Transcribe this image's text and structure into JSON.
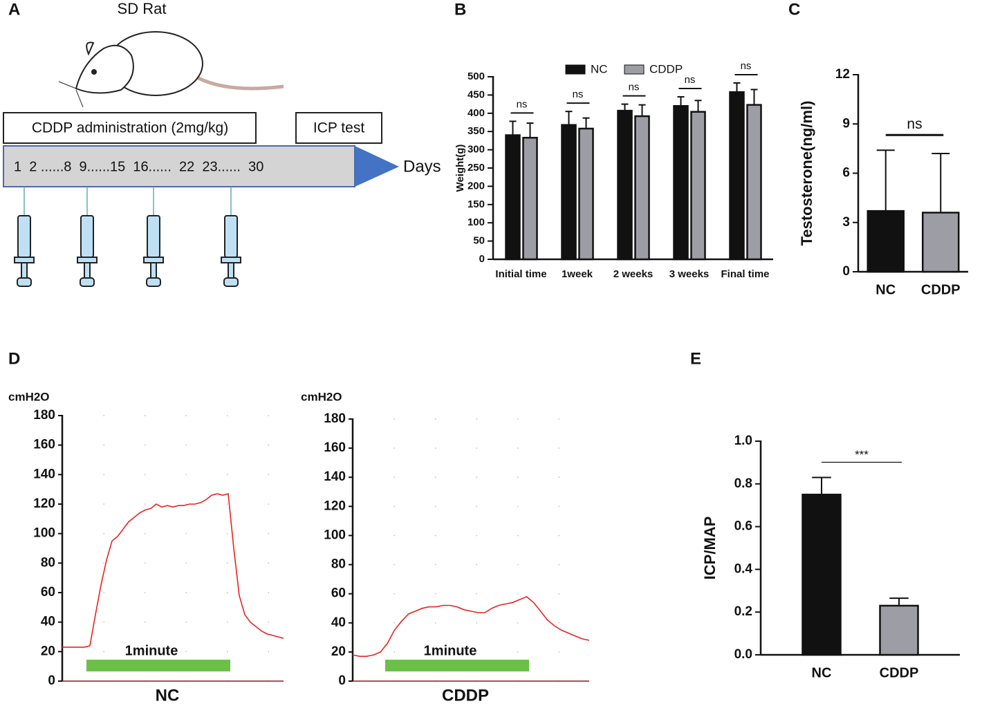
{
  "diagram": {
    "panel": "A",
    "title": "SD Rat",
    "treatment": "CDDP administration (2mg/kg)",
    "test": "ICP test",
    "timeline": "1  2 ......8  9......15  16......  22  23......  30",
    "axis": "Days"
  },
  "chart_data": [
    {
      "type": "bar",
      "panel": "B",
      "ylabel": "Weight(g)",
      "categories": [
        "Initial time",
        "1week",
        "2 weeks",
        "3 weeks",
        "Final time"
      ],
      "series": [
        {
          "name": "NC",
          "color": "#111111",
          "values": [
            340,
            368,
            407,
            420,
            458
          ],
          "errors": [
            38,
            37,
            18,
            25,
            25
          ]
        },
        {
          "name": "CDDP",
          "color": "#9d9da5",
          "values": [
            333,
            358,
            392,
            404,
            423
          ],
          "errors": [
            40,
            29,
            31,
            31,
            42
          ]
        }
      ],
      "annotations": [
        "ns",
        "ns",
        "ns",
        "ns",
        "ns"
      ],
      "ylim": [
        0,
        500
      ],
      "yticks": [
        0,
        50,
        100,
        150,
        200,
        250,
        300,
        350,
        400,
        450,
        500
      ],
      "legend": "top"
    },
    {
      "type": "bar",
      "panel": "C",
      "ylabel": "Testosterone(ng/ml)",
      "categories": [
        "NC",
        "CDDP"
      ],
      "values": [
        3.7,
        3.6
      ],
      "errors": [
        3.7,
        3.6
      ],
      "colors": [
        "#111111",
        "#9d9da5"
      ],
      "annotation": "ns",
      "ylim": [
        0,
        12
      ],
      "yticks": [
        0,
        3,
        6,
        9,
        12
      ]
    },
    {
      "type": "line",
      "panel": "D",
      "ylabel": "cmH2O",
      "xlabel": "NC",
      "annotation": "1minute",
      "color": "#e8231f",
      "values": [
        23,
        23,
        23,
        23,
        23,
        24,
        45,
        65,
        82,
        95,
        98,
        103,
        108,
        111,
        114,
        116,
        117,
        120,
        118,
        119,
        118,
        119,
        119,
        120,
        120,
        121,
        123,
        126,
        127,
        126,
        127,
        90,
        58,
        45,
        40,
        37,
        34,
        32,
        31,
        30,
        29
      ],
      "ylim": [
        0,
        180
      ],
      "yticks": [
        0,
        20,
        40,
        60,
        80,
        100,
        120,
        140,
        160,
        180
      ],
      "grid": true
    },
    {
      "type": "line",
      "ylabel": "cmH2O",
      "xlabel": "CDDP",
      "annotation": "1minute",
      "color": "#e8231f",
      "values": [
        18,
        17,
        17,
        18,
        20,
        26,
        35,
        41,
        46,
        48,
        50,
        51,
        51,
        52,
        52,
        51,
        49,
        48,
        47,
        47,
        50,
        52,
        53,
        54,
        56,
        58,
        54,
        48,
        42,
        38,
        35,
        33,
        31,
        29,
        28
      ],
      "ylim": [
        0,
        180
      ],
      "yticks": [
        0,
        20,
        40,
        60,
        80,
        100,
        120,
        140,
        160,
        180
      ],
      "grid": true
    },
    {
      "type": "bar",
      "panel": "E",
      "ylabel": "ICP/MAP",
      "categories": [
        "NC",
        "CDDP"
      ],
      "values": [
        0.75,
        0.23
      ],
      "errors": [
        0.08,
        0.035
      ],
      "colors": [
        "#111111",
        "#9d9da5"
      ],
      "annotation": "***",
      "ylim": [
        0,
        1
      ],
      "yticks": [
        {
          "value": 0,
          "label": "0.0"
        },
        0.2,
        0.4,
        0.6,
        0.8,
        {
          "value": 1,
          "label": "1.0"
        }
      ]
    }
  ]
}
